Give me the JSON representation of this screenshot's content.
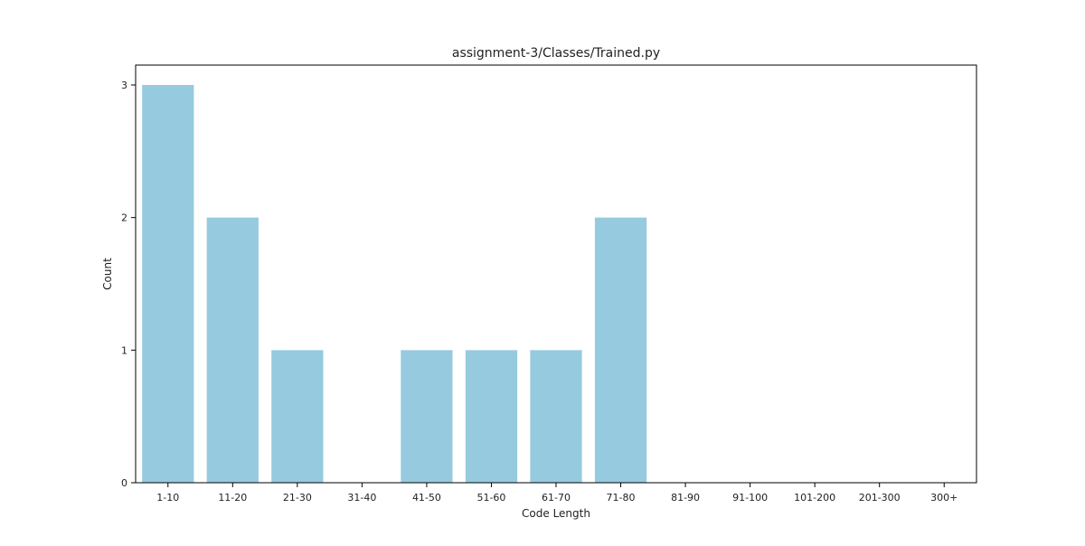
{
  "chart_data": {
    "type": "bar",
    "title": "assignment-3/Classes/Trained.py",
    "xlabel": "Code Length",
    "ylabel": "Count",
    "categories": [
      "1-10",
      "11-20",
      "21-30",
      "31-40",
      "41-50",
      "51-60",
      "61-70",
      "71-80",
      "81-90",
      "91-100",
      "101-200",
      "201-300",
      "300+"
    ],
    "values": [
      3,
      2,
      1,
      0,
      1,
      1,
      1,
      2,
      0,
      0,
      0,
      0,
      0
    ],
    "ylim": [
      0,
      3.15
    ],
    "yticks": [
      0,
      1,
      2,
      3
    ],
    "bar_color": "#96cadf",
    "grid": false,
    "legend": "none"
  }
}
